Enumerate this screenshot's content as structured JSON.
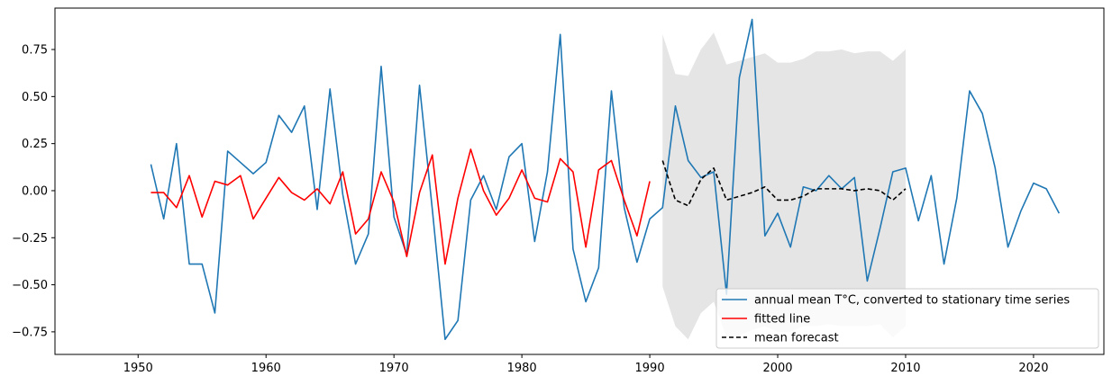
{
  "chart_data": {
    "type": "line",
    "title": "",
    "xlabel": "",
    "ylabel": "",
    "xlim": [
      1943.5,
      2025.5
    ],
    "ylim": [
      -0.87,
      0.97
    ],
    "x_ticks": [
      1950,
      1960,
      1970,
      1980,
      1990,
      2000,
      2010,
      2020
    ],
    "y_ticks": [
      -0.75,
      -0.5,
      -0.25,
      0.0,
      0.25,
      0.5,
      0.75
    ],
    "y_tick_labels": [
      "−0.75",
      "−0.50",
      "−0.25",
      "0.00",
      "0.25",
      "0.50",
      "0.75"
    ],
    "grid": false,
    "legend_position": "lower-right",
    "colors": {
      "observed": "#1f77b4",
      "fitted": "#ff0000",
      "forecast": "#000000",
      "interval": "#d3d3d3"
    },
    "series": [
      {
        "name": "annual mean T°C, converted to stationary time series",
        "style": "solid",
        "x": [
          1951,
          1952,
          1953,
          1954,
          1955,
          1956,
          1957,
          1958,
          1959,
          1960,
          1961,
          1962,
          1963,
          1964,
          1965,
          1966,
          1967,
          1968,
          1969,
          1970,
          1971,
          1972,
          1973,
          1974,
          1975,
          1976,
          1977,
          1978,
          1979,
          1980,
          1981,
          1982,
          1983,
          1984,
          1985,
          1986,
          1987,
          1988,
          1989,
          1990,
          1991,
          1992,
          1993,
          1994,
          1995,
          1996,
          1997,
          1998,
          1999,
          2000,
          2001,
          2002,
          2003,
          2004,
          2005,
          2006,
          2007,
          2008,
          2009,
          2010,
          2011,
          2012,
          2013,
          2014,
          2015,
          2016,
          2017,
          2018,
          2019,
          2020,
          2021,
          2022
        ],
        "values": [
          0.14,
          -0.15,
          0.25,
          -0.39,
          -0.39,
          -0.65,
          0.21,
          0.15,
          0.09,
          0.15,
          0.4,
          0.31,
          0.45,
          -0.1,
          0.54,
          -0.02,
          -0.39,
          -0.23,
          0.66,
          -0.14,
          -0.34,
          0.56,
          -0.1,
          -0.79,
          -0.69,
          -0.05,
          0.08,
          -0.1,
          0.18,
          0.25,
          -0.27,
          0.1,
          0.83,
          -0.31,
          -0.59,
          -0.41,
          0.53,
          -0.09,
          -0.38,
          -0.15,
          -0.09,
          0.45,
          0.16,
          0.07,
          0.1,
          -0.55,
          0.6,
          0.91,
          -0.24,
          -0.12,
          -0.3,
          0.02,
          0.0,
          0.08,
          0.01,
          0.07,
          -0.48,
          -0.2,
          0.1,
          0.12,
          -0.16,
          0.08,
          -0.39,
          -0.04,
          0.53,
          0.41,
          0.12,
          -0.3,
          -0.11,
          0.04,
          0.01,
          -0.12
        ]
      },
      {
        "name": "fitted line",
        "style": "solid",
        "x": [
          1951,
          1952,
          1953,
          1954,
          1955,
          1956,
          1957,
          1958,
          1959,
          1960,
          1961,
          1962,
          1963,
          1964,
          1965,
          1966,
          1967,
          1968,
          1969,
          1970,
          1971,
          1972,
          1973,
          1974,
          1975,
          1976,
          1977,
          1978,
          1979,
          1980,
          1981,
          1982,
          1983,
          1984,
          1985,
          1986,
          1987,
          1988,
          1989,
          1990
        ],
        "values": [
          -0.01,
          -0.01,
          -0.09,
          0.08,
          -0.14,
          0.05,
          0.03,
          0.08,
          -0.15,
          -0.04,
          0.07,
          -0.01,
          -0.05,
          0.01,
          -0.07,
          0.1,
          -0.23,
          -0.15,
          0.1,
          -0.06,
          -0.35,
          -0.01,
          0.19,
          -0.39,
          -0.04,
          0.22,
          0.0,
          -0.13,
          -0.04,
          0.11,
          -0.04,
          -0.06,
          0.17,
          0.1,
          -0.3,
          0.11,
          0.16,
          -0.05,
          -0.24,
          0.05
        ]
      },
      {
        "name": "mean forecast",
        "style": "dashed",
        "x": [
          1991,
          1992,
          1993,
          1994,
          1995,
          1996,
          1997,
          1998,
          1999,
          2000,
          2001,
          2002,
          2003,
          2004,
          2005,
          2006,
          2007,
          2008,
          2009,
          2010
        ],
        "values": [
          0.16,
          -0.05,
          -0.08,
          0.06,
          0.12,
          -0.05,
          -0.03,
          -0.01,
          0.02,
          -0.05,
          -0.05,
          -0.03,
          0.01,
          0.01,
          0.01,
          0.0,
          0.01,
          0.0,
          -0.05,
          0.01
        ]
      }
    ],
    "forecast_interval": {
      "x": [
        1991,
        1992,
        1993,
        1994,
        1995,
        1996,
        1997,
        1998,
        1999,
        2000,
        2001,
        2002,
        2003,
        2004,
        2005,
        2006,
        2007,
        2008,
        2009,
        2010
      ],
      "lower": [
        -0.51,
        -0.72,
        -0.79,
        -0.65,
        -0.59,
        -0.78,
        -0.77,
        -0.74,
        -0.72,
        -0.75,
        -0.75,
        -0.72,
        -0.72,
        -0.71,
        -0.72,
        -0.72,
        -0.72,
        -0.71,
        -0.78,
        -0.72
      ],
      "upper": [
        0.83,
        0.62,
        0.61,
        0.75,
        0.84,
        0.67,
        0.69,
        0.71,
        0.73,
        0.68,
        0.68,
        0.7,
        0.74,
        0.74,
        0.75,
        0.73,
        0.74,
        0.74,
        0.69,
        0.75
      ]
    }
  }
}
